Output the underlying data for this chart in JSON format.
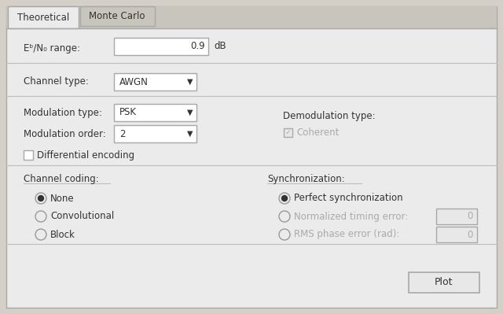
{
  "fig_w": 6.4,
  "fig_h": 3.99,
  "dpi": 100,
  "bg_outer": "#d4d0c8",
  "bg_panel": "#ebebeb",
  "bg_tab_active": "#ebebeb",
  "bg_tab_inactive": "#c8c5bc",
  "bg_input": "#ffffff",
  "bg_disabled_input": "#e8e8e8",
  "color_border": "#a8a8a8",
  "color_sep": "#c0bdb5",
  "color_text": "#333333",
  "color_disabled": "#aaaaaa",
  "color_radio_border": "#999999",
  "tab_active_label": "Theoretical",
  "tab_inactive_label": "Monte Carlo",
  "eb_label": "Eᵇ/N₀ range:",
  "eb_value": "0.9",
  "eb_unit": "dB",
  "ch_label": "Channel type:",
  "ch_value": "AWGN",
  "mod_label": "Modulation type:",
  "mod_value": "PSK",
  "order_label": "Modulation order:",
  "order_value": "2",
  "demod_label": "Demodulation type:",
  "coherent_label": "Coherent",
  "diff_label": "Differential encoding",
  "ch_coding_label": "Channel coding:",
  "sync_label": "Synchronization:",
  "radio_ch": [
    {
      "label": "None",
      "selected": true
    },
    {
      "label": "Convolutional",
      "selected": false
    },
    {
      "label": "Block",
      "selected": false
    }
  ],
  "radio_sync": [
    {
      "label": "Perfect synchronization",
      "selected": true,
      "has_input": false
    },
    {
      "label": "Normalized timing error:",
      "selected": false,
      "has_input": true,
      "value": "0"
    },
    {
      "label": "RMS phase error (rad):",
      "selected": false,
      "has_input": true,
      "value": "0"
    }
  ],
  "plot_label": "Plot"
}
